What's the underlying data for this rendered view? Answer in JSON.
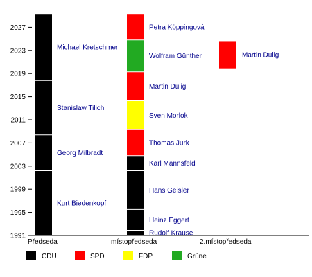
{
  "chart_data": {
    "type": "timeline",
    "colors": {
      "CDU": "#000000",
      "SPD": "#ff0000",
      "FDP": "#ffff00",
      "Grüne": "#22aa22"
    },
    "y_range": [
      1991,
      2029.3
    ],
    "y_ticks": [
      1991,
      1995,
      1999,
      2003,
      2007,
      2011,
      2015,
      2019,
      2023,
      2027
    ],
    "columns": [
      {
        "label": "Předseda",
        "segments": [
          {
            "name": "Kurt Biedenkopf",
            "party": "CDU",
            "start": 1991,
            "end": 2002.2
          },
          {
            "name": "Georg Milbradt",
            "party": "CDU",
            "start": 2002.2,
            "end": 2008.4
          },
          {
            "name": "Stanislaw Tilich",
            "party": "CDU",
            "start": 2008.4,
            "end": 2017.8
          },
          {
            "name": "Michael Kretschmer",
            "party": "CDU",
            "start": 2017.8,
            "end": 2029.3
          }
        ]
      },
      {
        "label": "místopředseda",
        "segments": [
          {
            "name": "Rudolf Krause",
            "party": "CDU",
            "start": 1991,
            "end": 1991.9
          },
          {
            "name": "Heinz Eggert",
            "party": "CDU",
            "start": 1991.9,
            "end": 1995.5
          },
          {
            "name": "Hans Geisler",
            "party": "CDU",
            "start": 1995.5,
            "end": 2002.2
          },
          {
            "name": "Karl Mannsfeld",
            "party": "CDU",
            "start": 2002.2,
            "end": 2004.8
          },
          {
            "name": "Thomas Jurk",
            "party": "SPD",
            "start": 2004.8,
            "end": 2009.3
          },
          {
            "name": "Sven Morlok",
            "party": "FDP",
            "start": 2009.3,
            "end": 2014.3
          },
          {
            "name": "Martin Dulig",
            "party": "SPD",
            "start": 2014.3,
            "end": 2019.3
          },
          {
            "name": "Wolfram Günther",
            "party": "Grüne",
            "start": 2019.3,
            "end": 2024.8
          },
          {
            "name": "Petra Köppingová",
            "party": "SPD",
            "start": 2024.8,
            "end": 2029.3
          }
        ]
      },
      {
        "label": "2.místopředseda",
        "segments": [
          {
            "name": "Martin Dulig",
            "party": "SPD",
            "start": 2019.9,
            "end": 2024.6
          }
        ]
      }
    ],
    "legend": [
      {
        "label": "CDU",
        "color": "#000000"
      },
      {
        "label": "SPD",
        "color": "#ff0000"
      },
      {
        "label": "FDP",
        "color": "#ffff00"
      },
      {
        "label": "Grüne",
        "color": "#22aa22"
      }
    ]
  }
}
